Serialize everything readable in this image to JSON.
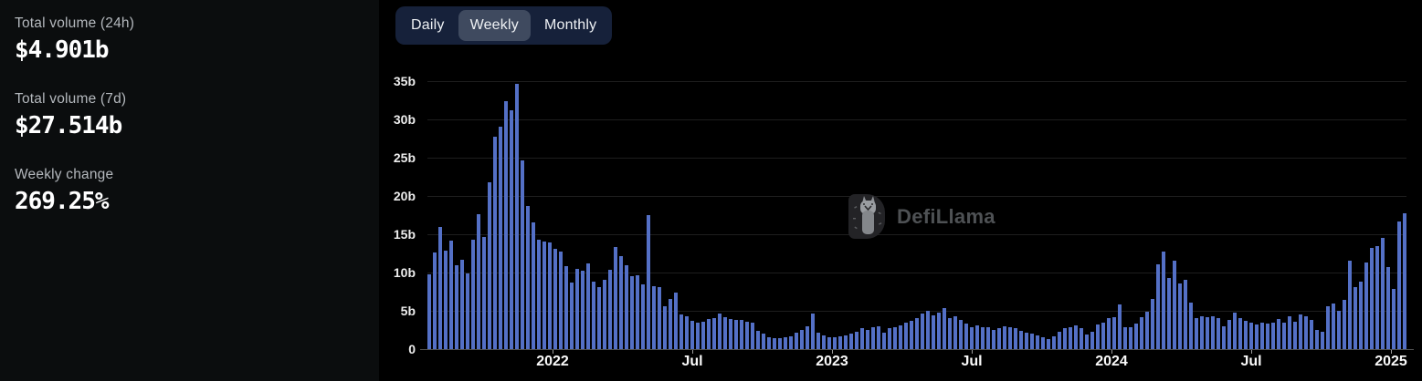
{
  "stats": {
    "items": [
      {
        "label": "Total volume (24h)",
        "value": "$4.901b"
      },
      {
        "label": "Total volume (7d)",
        "value": "$27.514b"
      },
      {
        "label": "Weekly change",
        "value": "269.25%"
      }
    ]
  },
  "tabs": {
    "items": [
      {
        "label": "Daily",
        "selected": false
      },
      {
        "label": "Weekly",
        "selected": true
      },
      {
        "label": "Monthly",
        "selected": false
      }
    ]
  },
  "watermark": {
    "icon": "llama-icon",
    "text": "DefiLlama"
  },
  "colors": {
    "bar": "#5470c6",
    "page_background": "#000000",
    "panel_background": "#0b0d0e",
    "tab_bar": "#16213a",
    "tab_selected": "#3f4a5f"
  },
  "chart_data": {
    "type": "bar",
    "title": "",
    "xlabel": "",
    "ylabel": "",
    "x_unit": "week",
    "ylim": [
      0,
      35
    ],
    "grid": true,
    "legend": null,
    "bar_color": "#5470c6",
    "y_ticks": [
      {
        "label": "35b",
        "value": 35
      },
      {
        "label": "30b",
        "value": 30
      },
      {
        "label": "25b",
        "value": 25
      },
      {
        "label": "20b",
        "value": 20
      },
      {
        "label": "15b",
        "value": 15
      },
      {
        "label": "10b",
        "value": 10
      },
      {
        "label": "5b",
        "value": 5
      },
      {
        "label": "0",
        "value": 0
      }
    ],
    "x_ticks": [
      {
        "label": "2022",
        "idx": 22.5
      },
      {
        "label": "Jul",
        "idx": 48
      },
      {
        "label": "2023",
        "idx": 73.5
      },
      {
        "label": "Jul",
        "idx": 99
      },
      {
        "label": "2024",
        "idx": 124.5
      },
      {
        "label": "Jul",
        "idx": 150
      },
      {
        "label": "2025",
        "idx": 175.5
      }
    ],
    "values_unit": "billions USD",
    "values": [
      9.8,
      12.6,
      16.0,
      12.9,
      14.2,
      10.9,
      11.7,
      9.9,
      14.3,
      17.6,
      14.6,
      21.8,
      27.7,
      29.0,
      32.4,
      31.2,
      34.7,
      24.6,
      18.7,
      16.5,
      14.3,
      14.0,
      13.9,
      13.1,
      12.7,
      10.8,
      8.7,
      10.5,
      10.2,
      11.2,
      8.8,
      8.1,
      9.0,
      10.4,
      13.3,
      12.2,
      11.0,
      9.5,
      9.7,
      8.5,
      17.5,
      8.2,
      8.1,
      5.6,
      6.5,
      7.4,
      4.5,
      4.3,
      3.7,
      3.4,
      3.6,
      3.9,
      4.1,
      4.6,
      4.2,
      3.9,
      3.8,
      3.8,
      3.6,
      3.4,
      2.4,
      2.0,
      1.6,
      1.4,
      1.4,
      1.5,
      1.7,
      2.2,
      2.5,
      3.0,
      4.6,
      2.1,
      1.8,
      1.5,
      1.6,
      1.7,
      1.8,
      2.0,
      2.3,
      2.7,
      2.5,
      2.8,
      3.0,
      2.1,
      2.7,
      2.9,
      3.1,
      3.4,
      3.7,
      4.1,
      4.6,
      5.0,
      4.4,
      4.8,
      5.3,
      4.1,
      4.3,
      3.8,
      3.3,
      2.9,
      3.1,
      2.9,
      2.8,
      2.5,
      2.7,
      3.0,
      2.9,
      2.7,
      2.4,
      2.2,
      2.0,
      1.8,
      1.5,
      1.3,
      1.7,
      2.3,
      2.7,
      2.9,
      3.1,
      2.7,
      1.9,
      2.3,
      3.2,
      3.5,
      4.0,
      4.2,
      5.8,
      2.9,
      2.8,
      3.3,
      4.2,
      4.9,
      6.6,
      11.1,
      12.7,
      9.3,
      11.5,
      8.6,
      9.0,
      6.1,
      4.0,
      4.3,
      4.2,
      4.3,
      4.1,
      3.0,
      3.8,
      4.8,
      4.1,
      3.7,
      3.5,
      3.2,
      3.4,
      3.3,
      3.5,
      3.9,
      3.4,
      4.3,
      3.6,
      4.5,
      4.3,
      3.8,
      2.5,
      2.3,
      5.6,
      5.9,
      5.0,
      6.4,
      11.6,
      8.1,
      8.8,
      11.3,
      13.2,
      13.4,
      14.5,
      10.7,
      7.9,
      16.7,
      17.7
    ]
  }
}
